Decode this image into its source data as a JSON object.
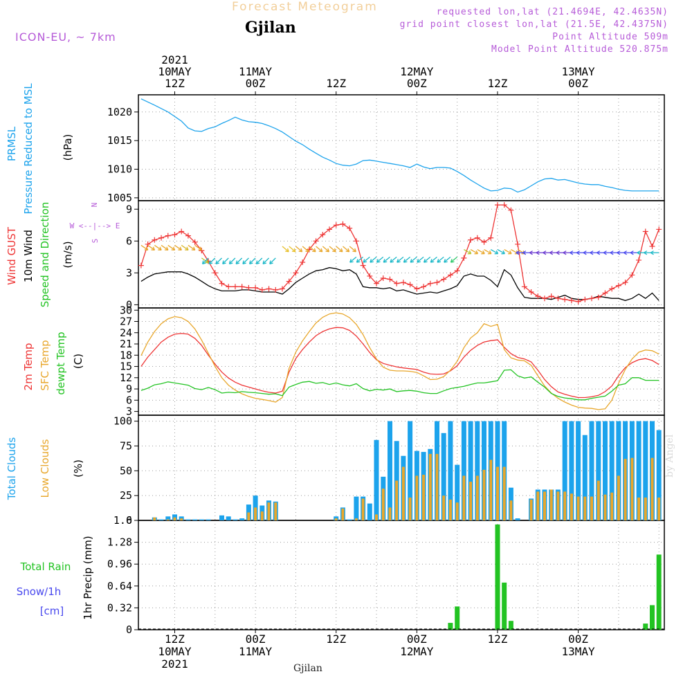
{
  "header": {
    "meteogram_title": "Forecast Meteogram",
    "location": "Gjilan",
    "model": "ICON-EU, ~ 7km",
    "requested": "requested lon,lat (21.4694E, 42.4635N)",
    "gridpoint": "grid point closest lon,lat (21.5E, 42.4375N)",
    "point_altitude": "Point Altitude 509m",
    "model_altitude": "Model Point Altitude 520.875m",
    "watermark": "by Angel",
    "bottom_name": "Gjilan"
  },
  "colors": {
    "blue": "#1ca3ec",
    "red": "#ee3434",
    "orange": "#e8a72c",
    "green": "#22c322",
    "purple": "#b65bd8",
    "black": "#000000",
    "snow": "#4848ee"
  },
  "time_axis": {
    "top_labels": [
      {
        "t": 12,
        "lines": [
          "2021",
          "10MAY",
          "12Z"
        ]
      },
      {
        "t": 24,
        "lines": [
          "11MAY",
          "00Z"
        ]
      },
      {
        "t": 36,
        "lines": [
          "12Z"
        ]
      },
      {
        "t": 48,
        "lines": [
          "12MAY",
          "00Z"
        ]
      },
      {
        "t": 60,
        "lines": [
          "12Z"
        ]
      },
      {
        "t": 72,
        "lines": [
          "13MAY",
          "00Z"
        ]
      }
    ],
    "bottom_labels": [
      {
        "t": 12,
        "lines": [
          "12Z",
          "10MAY",
          "2021"
        ]
      },
      {
        "t": 24,
        "lines": [
          "00Z",
          "11MAY"
        ]
      },
      {
        "t": 36,
        "lines": [
          "12Z"
        ]
      },
      {
        "t": 48,
        "lines": [
          "00Z",
          "12MAY"
        ]
      },
      {
        "t": 60,
        "lines": [
          "12Z"
        ]
      },
      {
        "t": 72,
        "lines": [
          "00Z",
          "13MAY"
        ]
      }
    ]
  },
  "chart_data": [
    {
      "type": "line",
      "panel": "pressure",
      "title": "PRMSL Pressure Reduced to MSL",
      "side_labels": [
        "PRMSL",
        "Pressure Reduced to MSL"
      ],
      "ylabel": "(hPa)",
      "ylim": [
        1004.5,
        1023
      ],
      "yticks": [
        1005,
        1010,
        1015,
        1020
      ],
      "x_hours": [
        7,
        9,
        11,
        12,
        13,
        14,
        15,
        16,
        17,
        18,
        19,
        20,
        21,
        22,
        23,
        24,
        25,
        26,
        27,
        28,
        29,
        30,
        31,
        32,
        33,
        34,
        35,
        36,
        37,
        38,
        39,
        40,
        41,
        42,
        43,
        44,
        45,
        46,
        47,
        48,
        49,
        50,
        51,
        52,
        53,
        54,
        55,
        56,
        57,
        58,
        59,
        60,
        61,
        62,
        63,
        64,
        65,
        66,
        67,
        68,
        69,
        70,
        71,
        72,
        73,
        74,
        75,
        76,
        77,
        78,
        79,
        80,
        81,
        82,
        83,
        84
      ],
      "series": [
        {
          "name": "PRMSL",
          "color": "#1ca3ec",
          "values": [
            1022.3,
            1021.2,
            1020.0,
            1019.2,
            1018.4,
            1017.2,
            1016.7,
            1016.6,
            1017.1,
            1017.4,
            1018.0,
            1018.5,
            1019.1,
            1018.6,
            1018.3,
            1018.2,
            1018.0,
            1017.6,
            1017.1,
            1016.5,
            1015.7,
            1014.9,
            1014.3,
            1013.5,
            1012.8,
            1012.1,
            1011.6,
            1011.0,
            1010.7,
            1010.6,
            1010.9,
            1011.5,
            1011.6,
            1011.4,
            1011.2,
            1011.0,
            1010.8,
            1010.6,
            1010.3,
            1010.9,
            1010.4,
            1010.1,
            1010.3,
            1010.3,
            1010.2,
            1009.6,
            1008.9,
            1008.1,
            1007.4,
            1006.7,
            1006.2,
            1006.3,
            1006.7,
            1006.6,
            1006.0,
            1006.4,
            1007.1,
            1007.8,
            1008.3,
            1008.4,
            1008.1,
            1008.2,
            1007.9,
            1007.6,
            1007.4,
            1007.3,
            1007.3,
            1007.0,
            1006.8,
            1006.5,
            1006.3,
            1006.2,
            1006.2,
            1006.2,
            1006.2,
            1006.2
          ]
        }
      ]
    },
    {
      "type": "line",
      "panel": "wind",
      "title": "Wind GUST / 10m Wind Speed and Direction",
      "side_labels": [
        "Wind GUST",
        "10m Wind",
        "Speed and Direction"
      ],
      "compass_labels": [
        "W <--|--> E",
        "N",
        "S"
      ],
      "ylabel": "(m/s)",
      "ylim": [
        -0.3,
        9.8
      ],
      "yticks": [
        0,
        3,
        6,
        9
      ],
      "x_hours": [
        7,
        8,
        9,
        10,
        11,
        12,
        13,
        14,
        15,
        16,
        17,
        18,
        19,
        20,
        21,
        22,
        23,
        24,
        25,
        26,
        27,
        28,
        29,
        30,
        31,
        32,
        33,
        34,
        35,
        36,
        37,
        38,
        39,
        40,
        41,
        42,
        43,
        44,
        45,
        46,
        47,
        48,
        49,
        50,
        51,
        52,
        53,
        54,
        55,
        56,
        57,
        58,
        59,
        60,
        61,
        62,
        63,
        64,
        65,
        66,
        67,
        68,
        69,
        70,
        71,
        72,
        73,
        74,
        75,
        76,
        77,
        78,
        79,
        80,
        81,
        82,
        83,
        84
      ],
      "series": [
        {
          "name": "Wind GUST",
          "color": "#ee3434",
          "marker": "+",
          "values": [
            3.7,
            5.7,
            6.1,
            6.3,
            6.5,
            6.6,
            6.9,
            6.5,
            5.9,
            5.1,
            4.1,
            3.0,
            2.0,
            1.7,
            1.7,
            1.7,
            1.6,
            1.6,
            1.4,
            1.5,
            1.4,
            1.5,
            2.2,
            3.0,
            4.0,
            5.2,
            6.0,
            6.6,
            7.1,
            7.5,
            7.6,
            7.2,
            6.0,
            3.7,
            2.7,
            2.0,
            2.5,
            2.4,
            2.0,
            2.1,
            1.9,
            1.5,
            1.7,
            2.0,
            2.1,
            2.4,
            2.8,
            3.2,
            4.4,
            6.1,
            6.3,
            5.9,
            6.3,
            9.4,
            9.4,
            8.9,
            5.7,
            1.7,
            1.2,
            0.8,
            0.6,
            0.8,
            0.6,
            0.5,
            0.4,
            0.3,
            0.5,
            0.6,
            0.7,
            1.1,
            1.5,
            1.8,
            2.1,
            2.8,
            4.2,
            6.9,
            5.5,
            7.1
          ]
        },
        {
          "name": "10m Wind Speed",
          "color": "#000000",
          "values": [
            2.2,
            2.6,
            2.9,
            3.0,
            3.1,
            3.1,
            3.1,
            2.9,
            2.6,
            2.2,
            1.8,
            1.5,
            1.3,
            1.3,
            1.3,
            1.4,
            1.4,
            1.3,
            1.2,
            1.2,
            1.2,
            1.0,
            1.5,
            2.1,
            2.5,
            2.9,
            3.2,
            3.3,
            3.5,
            3.4,
            3.2,
            3.3,
            2.9,
            1.7,
            1.6,
            1.6,
            1.5,
            1.6,
            1.3,
            1.4,
            1.2,
            1.0,
            1.1,
            1.2,
            1.1,
            1.3,
            1.5,
            1.8,
            2.7,
            2.9,
            2.7,
            2.7,
            2.3,
            1.7,
            3.3,
            2.8,
            1.6,
            0.7,
            0.6,
            0.6,
            0.6,
            0.5,
            0.7,
            0.9,
            0.6,
            0.5,
            0.5,
            0.6,
            0.8,
            0.7,
            0.6,
            0.6,
            0.4,
            0.6,
            1.0,
            0.6,
            1.1,
            0.4
          ]
        }
      ]
    },
    {
      "type": "line",
      "panel": "temperature",
      "title": "2m Temp / SFC Temp / dewpt Temp",
      "side_labels": [
        "2m Temp",
        "SFC Temp",
        "dewpt Temp"
      ],
      "ylabel": "(C)",
      "ylim": [
        2,
        30.6
      ],
      "yticks": [
        3,
        6,
        9,
        12,
        15,
        18,
        21,
        24,
        27,
        30
      ],
      "x_hours": [
        7,
        8,
        9,
        10,
        11,
        12,
        13,
        14,
        15,
        16,
        17,
        18,
        19,
        20,
        21,
        22,
        23,
        24,
        25,
        26,
        27,
        28,
        29,
        30,
        31,
        32,
        33,
        34,
        35,
        36,
        37,
        38,
        39,
        40,
        41,
        42,
        43,
        44,
        45,
        46,
        47,
        48,
        49,
        50,
        51,
        52,
        53,
        54,
        55,
        56,
        57,
        58,
        59,
        60,
        61,
        62,
        63,
        64,
        65,
        66,
        67,
        68,
        69,
        70,
        71,
        72,
        73,
        74,
        75,
        76,
        77,
        78,
        79,
        80,
        81,
        82,
        83,
        84
      ],
      "series": [
        {
          "name": "2m Temp",
          "color": "#ee3434",
          "values": [
            15.0,
            17.5,
            19.5,
            21.5,
            22.8,
            23.6,
            23.8,
            23.6,
            22.5,
            20.6,
            18.0,
            15.6,
            13.5,
            11.9,
            10.8,
            10.0,
            9.5,
            9.0,
            8.5,
            8.1,
            7.9,
            8.4,
            13.5,
            17.1,
            19.5,
            21.5,
            23.2,
            24.3,
            25.0,
            25.4,
            25.3,
            24.6,
            23.1,
            21.0,
            18.7,
            16.8,
            15.8,
            15.3,
            14.9,
            14.6,
            14.4,
            14.2,
            13.5,
            13.0,
            12.9,
            13.0,
            13.8,
            15.2,
            17.5,
            19.3,
            20.6,
            21.5,
            21.9,
            22.1,
            20.1,
            18.4,
            17.4,
            17.0,
            16.2,
            14.0,
            11.5,
            9.6,
            8.2,
            7.6,
            7.1,
            6.7,
            6.7,
            6.9,
            7.3,
            8.3,
            9.8,
            12.5,
            14.7,
            16.0,
            16.8,
            17.1,
            16.6,
            15.5
          ]
        },
        {
          "name": "SFC Temp",
          "color": "#e8a72c",
          "values": [
            17.9,
            21.5,
            24.3,
            26.4,
            27.7,
            28.3,
            28.0,
            27.0,
            25.0,
            22.0,
            18.5,
            15.0,
            12.0,
            10.0,
            8.7,
            7.7,
            7.0,
            6.5,
            6.2,
            5.9,
            5.5,
            6.7,
            14.5,
            18.8,
            21.8,
            24.3,
            26.6,
            28.1,
            29.0,
            29.3,
            29.0,
            28.0,
            26.2,
            23.5,
            20.0,
            17.0,
            14.8,
            14.0,
            13.8,
            13.8,
            13.7,
            13.4,
            12.5,
            11.5,
            11.6,
            12.3,
            14.0,
            16.4,
            20.0,
            22.6,
            24.0,
            26.4,
            25.7,
            26.2,
            19.5,
            17.3,
            16.7,
            16.5,
            15.3,
            12.5,
            9.8,
            7.9,
            6.5,
            5.5,
            4.7,
            4.1,
            3.9,
            3.8,
            3.5,
            3.7,
            6.0,
            10.5,
            14.2,
            17.0,
            18.8,
            19.4,
            19.2,
            18.3
          ]
        },
        {
          "name": "dewpt Temp",
          "color": "#22c322",
          "values": [
            8.6,
            9.2,
            10.1,
            10.4,
            10.9,
            10.6,
            10.3,
            10.0,
            9.1,
            8.8,
            9.4,
            8.8,
            7.9,
            8.1,
            8.0,
            8.3,
            8.1,
            8.0,
            7.8,
            7.6,
            7.7,
            7.2,
            9.5,
            10.2,
            10.8,
            11.0,
            10.5,
            10.7,
            10.2,
            10.6,
            10.1,
            9.8,
            10.4,
            9.1,
            8.5,
            8.9,
            8.7,
            9.0,
            8.3,
            8.5,
            8.6,
            8.4,
            8.0,
            7.8,
            7.8,
            8.5,
            9.1,
            9.4,
            9.7,
            10.2,
            10.6,
            10.6,
            10.9,
            11.2,
            14.0,
            14.1,
            12.5,
            11.9,
            12.2,
            10.8,
            9.5,
            7.8,
            7.0,
            6.6,
            6.4,
            6.1,
            6.1,
            6.5,
            6.8,
            7.1,
            8.4,
            10.0,
            10.4,
            12.0,
            12.0,
            11.3,
            11.3,
            11.3
          ]
        }
      ]
    },
    {
      "type": "bar",
      "panel": "clouds",
      "title": "Total Clouds / Low Clouds",
      "side_labels": [
        "Total Clouds",
        "Low Clouds"
      ],
      "ylabel": "(%)",
      "ylim": [
        0,
        106
      ],
      "yticks": [
        0,
        25,
        50,
        75,
        100
      ],
      "x_hours": [
        7,
        8,
        9,
        10,
        11,
        12,
        13,
        14,
        15,
        16,
        17,
        18,
        19,
        20,
        21,
        22,
        23,
        24,
        25,
        26,
        27,
        28,
        29,
        30,
        31,
        32,
        33,
        34,
        35,
        36,
        37,
        38,
        39,
        40,
        41,
        42,
        43,
        44,
        45,
        46,
        47,
        48,
        49,
        50,
        51,
        52,
        53,
        54,
        55,
        56,
        57,
        58,
        59,
        60,
        61,
        62,
        63,
        64,
        65,
        66,
        67,
        68,
        69,
        70,
        71,
        72,
        73,
        74,
        75,
        76,
        77,
        78,
        79,
        80,
        81,
        82,
        83,
        84
      ],
      "series": [
        {
          "name": "Total Clouds",
          "color": "#1ca3ec",
          "values": [
            0,
            0,
            3,
            1,
            4,
            6,
            4,
            1,
            1,
            1,
            1,
            0,
            5,
            4,
            1,
            2,
            16,
            25,
            15,
            20,
            19,
            0,
            0,
            0,
            0,
            0,
            0,
            0,
            0,
            4,
            13,
            1,
            24,
            24,
            17,
            81,
            44,
            100,
            80,
            65,
            100,
            70,
            69,
            72,
            100,
            88,
            100,
            56,
            100,
            100,
            100,
            100,
            100,
            100,
            100,
            33,
            2,
            0,
            22,
            31,
            31,
            31,
            31,
            100,
            100,
            100,
            86,
            100,
            100,
            100,
            100,
            100,
            100,
            100,
            100,
            100,
            100,
            91
          ]
        },
        {
          "name": "Low Clouds",
          "color": "#e8a72c",
          "values": [
            0,
            0,
            3,
            0,
            1,
            3,
            2,
            0,
            0,
            0,
            0,
            0,
            0,
            0,
            0,
            0,
            8,
            13,
            9,
            18,
            18,
            0,
            0,
            0,
            0,
            0,
            0,
            0,
            0,
            2,
            12,
            0,
            2,
            22,
            0,
            6,
            32,
            13,
            40,
            54,
            23,
            45,
            46,
            67,
            67,
            25,
            21,
            18,
            45,
            39,
            45,
            51,
            61,
            54,
            54,
            20,
            0,
            0,
            21,
            29,
            29,
            31,
            29,
            29,
            27,
            24,
            24,
            24,
            40,
            26,
            28,
            45,
            62,
            63,
            23,
            23,
            63,
            23
          ]
        }
      ]
    },
    {
      "type": "bar",
      "panel": "precip",
      "title": "1hr Precip (mm)",
      "side_labels": [
        "Total   Rain",
        "Snow/1h",
        "[cm]"
      ],
      "ylabel": "1hr Precip (mm)",
      "ylim": [
        0,
        1.6
      ],
      "yticks": [
        0,
        0.32,
        0.64,
        0.96,
        1.28,
        1.6
      ],
      "ytick_labels": [
        "0",
        "0.32",
        "0.64",
        "0.96",
        "1.28",
        "1.6"
      ],
      "x_hours": [
        53,
        54,
        60,
        61,
        62,
        82,
        83,
        84
      ],
      "series": [
        {
          "name": "Total Rain",
          "color": "#22c322",
          "values": [
            0.1,
            0.34,
            1.54,
            0.69,
            0.13,
            0.09,
            0.36,
            1.1
          ]
        }
      ]
    }
  ]
}
